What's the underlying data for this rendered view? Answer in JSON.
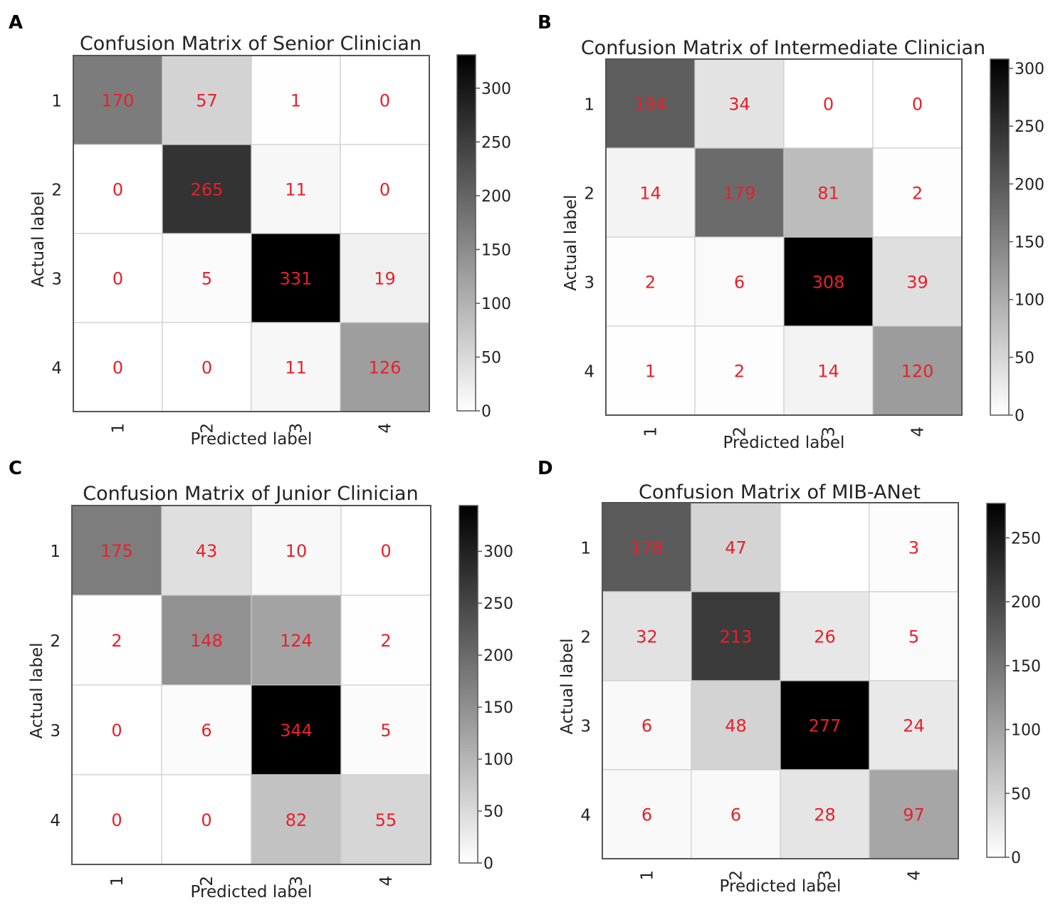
{
  "chart_data": [
    {
      "panel_label": "A",
      "type": "heatmap",
      "title": "Confusion Matrix of Senior Clinician",
      "xlabel": "Predicted label",
      "ylabel": "Actual label",
      "x_categories": [
        "1",
        "2",
        "3",
        "4"
      ],
      "y_categories": [
        "1",
        "2",
        "3",
        "4"
      ],
      "matrix": [
        [
          170,
          57,
          1,
          0
        ],
        [
          0,
          265,
          11,
          0
        ],
        [
          0,
          5,
          331,
          19
        ],
        [
          0,
          0,
          11,
          126
        ]
      ],
      "cell_labels": [
        [
          "170",
          "57",
          "1",
          "0"
        ],
        [
          "0",
          "265",
          "11",
          "0"
        ],
        [
          "0",
          "5",
          "331",
          "19"
        ],
        [
          "0",
          "0",
          "11",
          "126"
        ]
      ],
      "colorbar": {
        "min": 0,
        "max": 331,
        "ticks": [
          0,
          50,
          100,
          150,
          200,
          250,
          300
        ]
      }
    },
    {
      "panel_label": "B",
      "type": "heatmap",
      "title": "Confusion Matrix of Intermediate Clinician",
      "xlabel": "Predicted label",
      "ylabel": "Actual label",
      "x_categories": [
        "1",
        "2",
        "3",
        "4"
      ],
      "y_categories": [
        "1",
        "2",
        "3",
        "4"
      ],
      "matrix": [
        [
          194,
          34,
          0,
          0
        ],
        [
          14,
          179,
          81,
          2
        ],
        [
          2,
          6,
          308,
          39
        ],
        [
          1,
          2,
          14,
          120
        ]
      ],
      "cell_labels": [
        [
          "194",
          "34",
          "0",
          "0"
        ],
        [
          "14",
          "179",
          "81",
          "2"
        ],
        [
          "2",
          "6",
          "308",
          "39"
        ],
        [
          "1",
          "2",
          "14",
          "120"
        ]
      ],
      "colorbar": {
        "min": 0,
        "max": 308,
        "ticks": [
          0,
          50,
          100,
          150,
          200,
          250,
          300
        ]
      }
    },
    {
      "panel_label": "C",
      "type": "heatmap",
      "title": "Confusion Matrix of Junior Clinician",
      "xlabel": "Predicted label",
      "ylabel": "Actual label",
      "x_categories": [
        "1",
        "2",
        "3",
        "4"
      ],
      "y_categories": [
        "1",
        "2",
        "3",
        "4"
      ],
      "matrix": [
        [
          175,
          43,
          10,
          0
        ],
        [
          2,
          148,
          124,
          2
        ],
        [
          0,
          6,
          344,
          5
        ],
        [
          0,
          0,
          82,
          55
        ]
      ],
      "cell_labels": [
        [
          "175",
          "43",
          "10",
          "0"
        ],
        [
          "2",
          "148",
          "124",
          "2"
        ],
        [
          "0",
          "6",
          "344",
          "5"
        ],
        [
          "0",
          "0",
          "82",
          "55"
        ]
      ],
      "colorbar": {
        "min": 0,
        "max": 344,
        "ticks": [
          0,
          50,
          100,
          150,
          200,
          250,
          300
        ]
      }
    },
    {
      "panel_label": "D",
      "type": "heatmap",
      "title": "Confusion Matrix of MIB-ANet",
      "xlabel": "Predicted label",
      "ylabel": "Actual label",
      "x_categories": [
        "1",
        "2",
        "3",
        "4"
      ],
      "y_categories": [
        "1",
        "2",
        "3",
        "4"
      ],
      "matrix": [
        [
          178,
          47,
          0,
          3
        ],
        [
          32,
          213,
          26,
          5
        ],
        [
          6,
          48,
          277,
          24
        ],
        [
          6,
          6,
          28,
          97
        ]
      ],
      "cell_labels": [
        [
          "178",
          "47",
          "",
          "3"
        ],
        [
          "32",
          "213",
          "26",
          "5"
        ],
        [
          "6",
          "48",
          "277",
          "24"
        ],
        [
          "6",
          "6",
          "28",
          "97"
        ]
      ],
      "colorbar": {
        "min": 0,
        "max": 277,
        "ticks": [
          0,
          50,
          100,
          150,
          200,
          250
        ]
      }
    }
  ],
  "colors": {
    "cell_text": "#e8202a",
    "cmap_low": "#ffffff",
    "cmap_high": "#000000",
    "axis": "#555555",
    "grid": "#cccccc",
    "text": "#222222",
    "panel_label": "#000000"
  }
}
